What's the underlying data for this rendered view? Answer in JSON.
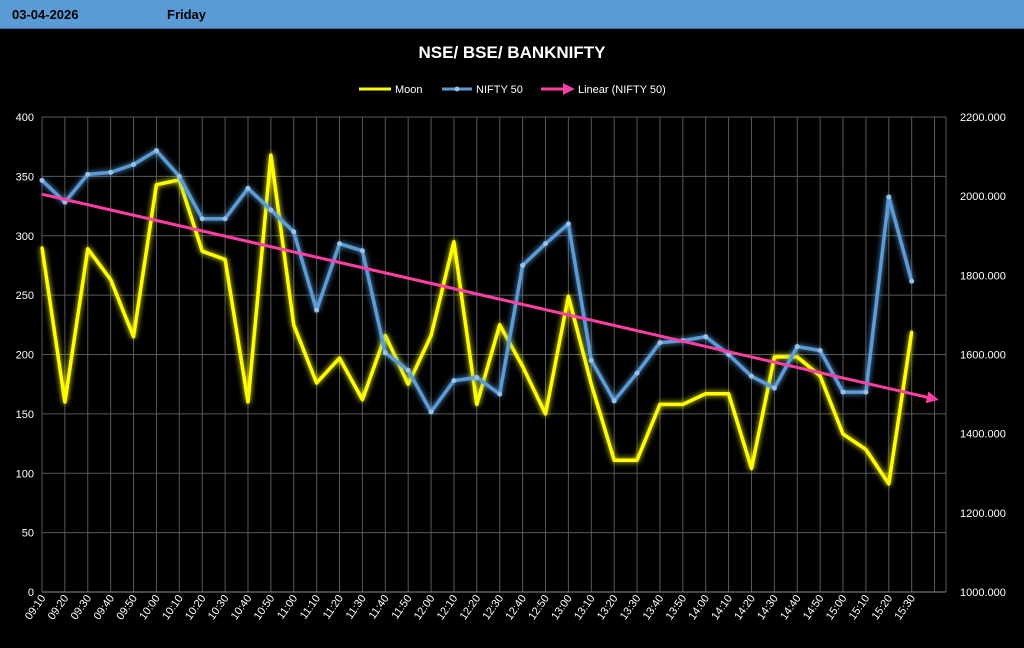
{
  "header": {
    "date": "03-04-2026",
    "day": "Friday",
    "bar_color": "#5b9bd5"
  },
  "chart_data": {
    "type": "line",
    "title": "NSE/ BSE/ BANKNIFTY",
    "categories": [
      "09:10",
      "09:20",
      "09:30",
      "09:40",
      "09:50",
      "10:00",
      "10:10",
      "10:20",
      "10:30",
      "10:40",
      "10:50",
      "11:00",
      "11:10",
      "11:20",
      "11:30",
      "11:40",
      "11:50",
      "12:00",
      "12:10",
      "12:20",
      "12:30",
      "12:40",
      "12:50",
      "13:00",
      "13:10",
      "13:20",
      "13:30",
      "13:40",
      "13:50",
      "14:00",
      "14:10",
      "14:20",
      "14:30",
      "14:40",
      "14:50",
      "15:00",
      "15:10",
      "15:20",
      "15:30"
    ],
    "y_left": {
      "min": 0,
      "max": 400,
      "step": 50,
      "ticks": [
        "0",
        "50",
        "100",
        "150",
        "200",
        "250",
        "300",
        "350",
        "400"
      ]
    },
    "y_right": {
      "min": 1000,
      "max": 2200,
      "step": 200,
      "ticks": [
        "1000.000",
        "1200.000",
        "1400.000",
        "1600.000",
        "1800.000",
        "2000.000",
        "2200.000"
      ]
    },
    "grid": true,
    "legend_position": "top",
    "series": [
      {
        "name": "Moon",
        "axis": "left",
        "color": "#ffff00",
        "values": [
          290,
          160,
          289,
          263,
          215,
          343,
          347,
          287,
          280,
          160,
          368,
          225,
          176,
          197,
          162,
          216,
          175,
          216,
          295,
          158,
          225,
          190,
          150,
          249,
          175,
          111,
          111,
          158,
          158,
          167,
          167,
          104,
          198,
          198,
          182,
          133,
          120,
          91,
          219
        ]
      },
      {
        "name": "NIFTY 50",
        "axis": "right",
        "color": "#5b9bd5",
        "values": [
          2040,
          1985,
          2055,
          2060,
          2080,
          2115,
          2050,
          1943,
          1943,
          2020,
          1965,
          1910,
          1712,
          1880,
          1862,
          1604,
          1560,
          1455,
          1534,
          1542,
          1500,
          1825,
          1880,
          1930,
          1585,
          1483,
          1553,
          1630,
          1635,
          1645,
          1600,
          1545,
          1515,
          1620,
          1610,
          1505,
          1505,
          1998,
          1785
        ]
      }
    ],
    "trendline": {
      "name": "Linear (NIFTY 50)",
      "axis": "right",
      "color": "#ff3fa4",
      "start": 2005,
      "end": 1488
    }
  }
}
